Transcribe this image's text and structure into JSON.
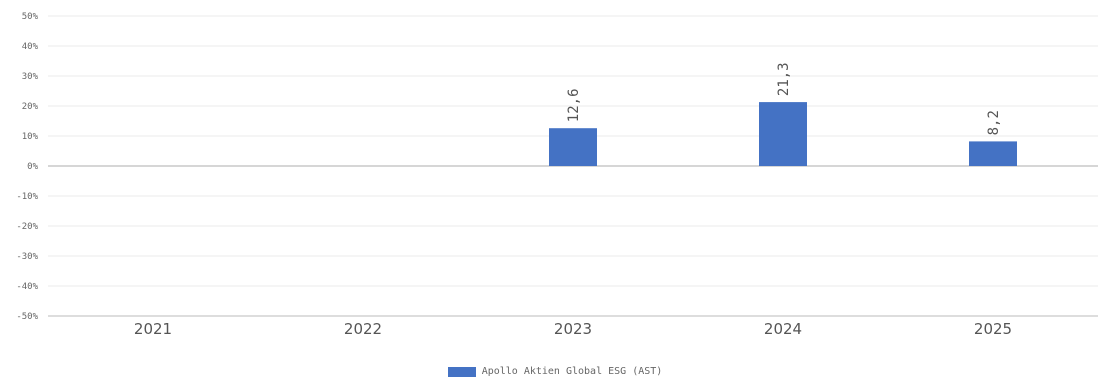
{
  "chart_data": {
    "type": "bar",
    "categories": [
      "2021",
      "2022",
      "2023",
      "2024",
      "2025"
    ],
    "series": [
      {
        "name": "Apollo Aktien Global ESG (AST)",
        "values": [
          null,
          null,
          12.6,
          21.3,
          8.2
        ],
        "labels": [
          "",
          "",
          "12,6",
          "21,3",
          "8,2"
        ],
        "color": "#4472c4"
      }
    ],
    "ylim": [
      -50,
      50
    ],
    "yticks": [
      50,
      40,
      30,
      20,
      10,
      0,
      -10,
      -20,
      -30,
      -40,
      -50
    ],
    "ytick_labels": [
      "50%",
      "40%",
      "30%",
      "20%",
      "10%",
      "0%",
      "-10%",
      "-20%",
      "-30%",
      "-40%",
      "-50%"
    ],
    "grid": true,
    "legend_position": "bottom-center",
    "title": "",
    "xlabel": "",
    "ylabel": ""
  }
}
